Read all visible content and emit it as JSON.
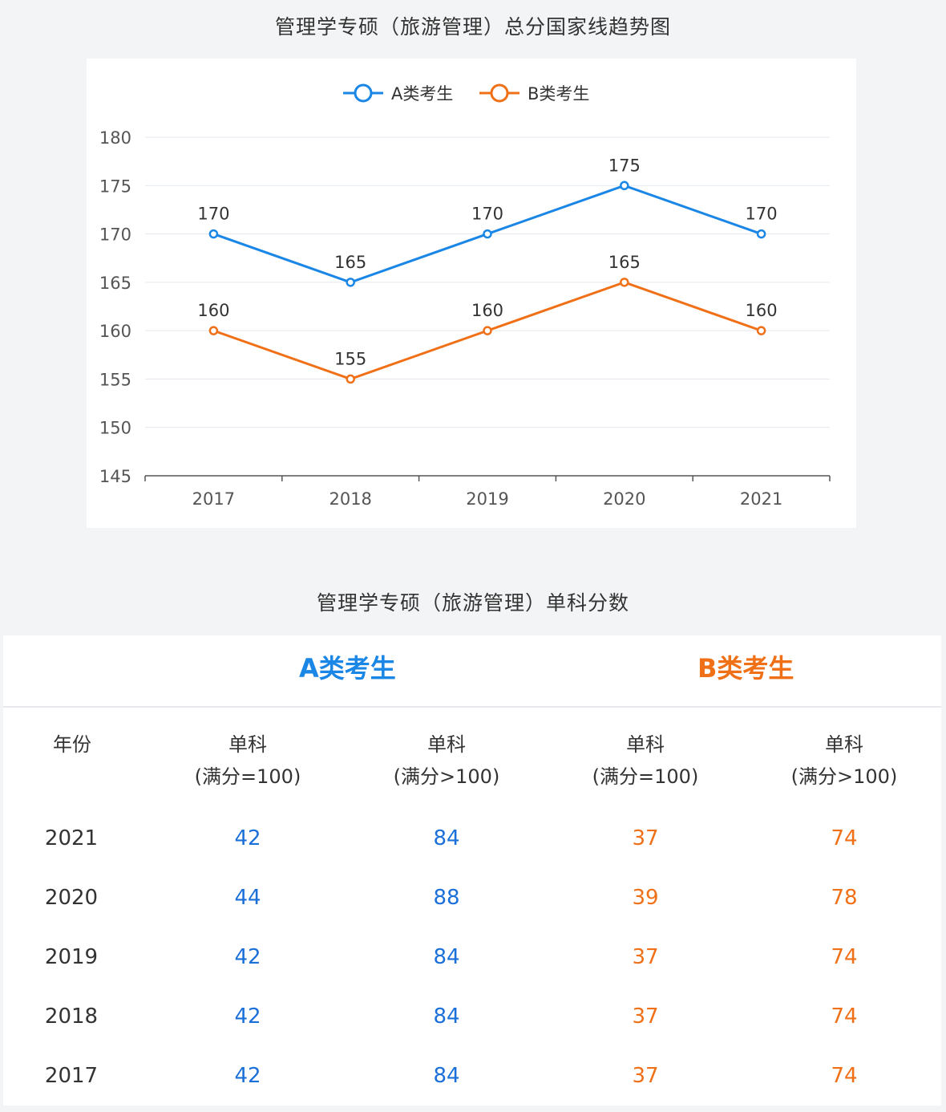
{
  "chart_title": "管理学专硕（旅游管理）总分国家线趋势图",
  "chart_data": {
    "type": "line",
    "title": "管理学专硕（旅游管理）总分国家线趋势图",
    "categories": [
      "2017",
      "2018",
      "2019",
      "2020",
      "2021"
    ],
    "series": [
      {
        "name": "A类考生",
        "color": "#1a86e6",
        "values": [
          170,
          165,
          170,
          175,
          170
        ]
      },
      {
        "name": "B类考生",
        "color": "#f07018",
        "values": [
          160,
          155,
          160,
          165,
          160
        ]
      }
    ],
    "ylim": [
      145,
      180
    ],
    "yticks": [
      145,
      150,
      155,
      160,
      165,
      170,
      175,
      180
    ],
    "grid": true,
    "legend_position": "top-center",
    "data_labels": true
  },
  "table": {
    "title": "管理学专硕（旅游管理）单科分数",
    "group_a": "A类考生",
    "group_b": "B类考生",
    "col_year": "年份",
    "col_subject": "单科",
    "col_eq100": "(满分=100)",
    "col_gt100": "(满分>100)",
    "rows": [
      {
        "year": "2021",
        "a1": "42",
        "a2": "84",
        "b1": "37",
        "b2": "74"
      },
      {
        "year": "2020",
        "a1": "44",
        "a2": "88",
        "b1": "39",
        "b2": "78"
      },
      {
        "year": "2019",
        "a1": "42",
        "a2": "84",
        "b1": "37",
        "b2": "74"
      },
      {
        "year": "2018",
        "a1": "42",
        "a2": "84",
        "b1": "37",
        "b2": "74"
      },
      {
        "year": "2017",
        "a1": "42",
        "a2": "84",
        "b1": "37",
        "b2": "74"
      }
    ]
  }
}
